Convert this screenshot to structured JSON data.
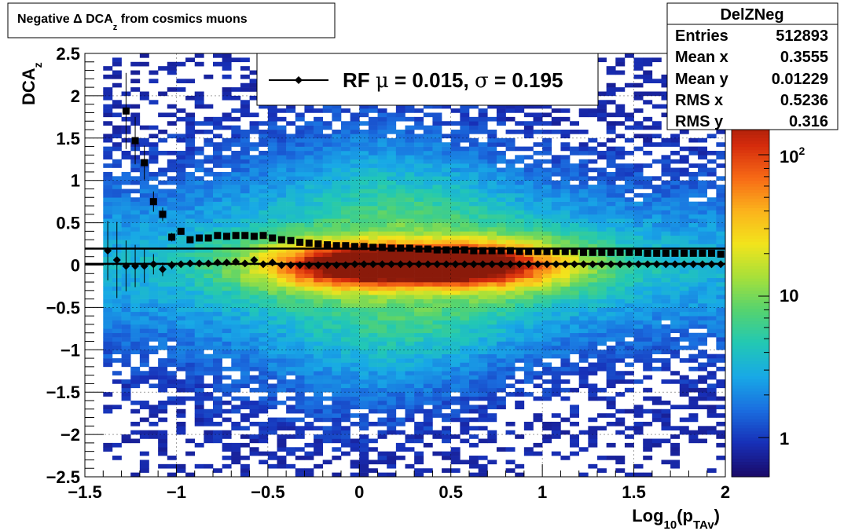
{
  "title": {
    "text_prefix": "Negative ",
    "delta": "Δ",
    "text_dca": " DCA",
    "sub": "z",
    "text_suffix": "  from cosmics muons"
  },
  "stats_box": {
    "name": "DelZNeg",
    "rows": [
      {
        "label": "Entries",
        "value": "512893"
      },
      {
        "label": "Mean x",
        "value": "0.3555"
      },
      {
        "label": "Mean y",
        "value": "0.01229"
      },
      {
        "label": "RMS x",
        "value": "0.5236"
      },
      {
        "label": "RMS y",
        "value": "0.316"
      }
    ]
  },
  "legend": {
    "rf": "RF ",
    "mu": "μ",
    "mid": " =  0.015, ",
    "sigma": "σ",
    "end": " =   0.195"
  },
  "axes": {
    "x_main": "Log",
    "x_sub1": "10",
    "x_open": "(p",
    "x_sub2": "TAv",
    "x_close": ")",
    "y_main": "DCA",
    "y_sub": "z"
  },
  "colorbar": {
    "labels": [
      {
        "text": "1",
        "sup": ""
      },
      {
        "text": "10",
        "sup": ""
      },
      {
        "text": "10",
        "sup": "2"
      }
    ],
    "palette": [
      "#1a0b6b",
      "#1730b8",
      "#1a6fe0",
      "#18a9e6",
      "#22c8b4",
      "#55d36f",
      "#a7e03a",
      "#f2e41c",
      "#fbb31c",
      "#f76a16",
      "#d42a0c",
      "#8a1a0a"
    ]
  },
  "chart_data": {
    "type": "heatmap",
    "x_range": [
      -1.5,
      2
    ],
    "y_range": [
      -2.5,
      2.5
    ],
    "z_scale": "log",
    "x_ticks": [
      "−1.5",
      "−1",
      "−0.5",
      "0",
      "0.5",
      "1",
      "1.5",
      "2"
    ],
    "y_ticks": [
      "−2.5",
      "−2",
      "−1.5",
      "−1",
      "−0.5",
      "0",
      "0.5",
      "1",
      "1.5",
      "2",
      "2.5"
    ],
    "grid": true,
    "legend_position": "top-center",
    "mean_line_y": 0.015,
    "sigma_line_y": 0.195,
    "series": [
      {
        "name": "RF",
        "marker": "diamond",
        "x": [
          -1.375,
          -1.325,
          -1.275,
          -1.225,
          -1.175,
          -1.125,
          -1.075,
          -1.025,
          -0.975,
          -0.925,
          -0.875,
          -0.825,
          -0.775,
          -0.725,
          -0.675,
          -0.625,
          -0.575,
          -0.525,
          -0.475,
          -0.425,
          -0.375,
          -0.325,
          -0.275,
          -0.225,
          -0.175,
          -0.125,
          -0.075,
          -0.025,
          0.025,
          0.075,
          0.125,
          0.175,
          0.225,
          0.275,
          0.325,
          0.375,
          0.425,
          0.475,
          0.525,
          0.575,
          0.625,
          0.675,
          0.725,
          0.775,
          0.825,
          0.875,
          0.925,
          0.975,
          1.025,
          1.075,
          1.125,
          1.175,
          1.225,
          1.275,
          1.325,
          1.375,
          1.425,
          1.475,
          1.525,
          1.575,
          1.625,
          1.675,
          1.725,
          1.775,
          1.825,
          1.875,
          1.925,
          1.975
        ],
        "y": [
          0.17,
          0.06,
          -0.01,
          -0.01,
          -0.01,
          0.01,
          -0.05,
          0.0,
          0.01,
          0.02,
          0.02,
          0.02,
          0.03,
          0.03,
          0.04,
          0.02,
          0.06,
          0.01,
          0.03,
          0.0,
          0.0,
          0.0,
          0.0,
          0.0,
          0.0,
          0.0,
          0.0,
          0.01,
          0.01,
          0.01,
          0.01,
          0.01,
          0.01,
          0.01,
          0.01,
          0.01,
          0.01,
          0.01,
          0.01,
          0.01,
          0.01,
          0.01,
          0.01,
          0.01,
          0.01,
          0.01,
          0.01,
          0.01,
          0.01,
          0.01,
          0.01,
          0.01,
          0.01,
          0.01,
          0.01,
          0.01,
          0.01,
          0.01,
          0.01,
          0.01,
          0.01,
          0.01,
          0.01,
          0.01,
          0.01,
          0.01,
          0.01,
          0.01
        ],
        "err": [
          0.35,
          0.45,
          0.3,
          0.25,
          0.2,
          0.12,
          0.08,
          0.05,
          0.03,
          0.02,
          0.02,
          0.01,
          0.01,
          0.01,
          0.01,
          0.01,
          0.01,
          0.01,
          0.01,
          0.01,
          0.01,
          0.01,
          0.01,
          0.01,
          0.01,
          0.01,
          0.01,
          0.01,
          0.01,
          0.01,
          0.01,
          0.01,
          0.01,
          0.01,
          0.01,
          0.01,
          0.01,
          0.01,
          0.01,
          0.01,
          0.01,
          0.01,
          0.01,
          0.01,
          0.01,
          0.01,
          0.01,
          0.01,
          0.01,
          0.01,
          0.01,
          0.01,
          0.01,
          0.01,
          0.01,
          0.01,
          0.01,
          0.01,
          0.01,
          0.01,
          0.01,
          0.01,
          0.01,
          0.01,
          0.01,
          0.01,
          0.01,
          0.01
        ]
      },
      {
        "name": "",
        "marker": "square",
        "x": [
          -1.275,
          -1.225,
          -1.175,
          -1.125,
          -1.075,
          -1.025,
          -0.975,
          -0.925,
          -0.875,
          -0.825,
          -0.775,
          -0.725,
          -0.675,
          -0.625,
          -0.575,
          -0.525,
          -0.475,
          -0.425,
          -0.375,
          -0.325,
          -0.275,
          -0.225,
          -0.175,
          -0.125,
          -0.075,
          -0.025,
          0.025,
          0.075,
          0.125,
          0.175,
          0.225,
          0.275,
          0.325,
          0.375,
          0.425,
          0.475,
          0.525,
          0.575,
          0.625,
          0.675,
          0.725,
          0.775,
          0.825,
          0.875,
          0.925,
          0.975,
          1.025,
          1.075,
          1.125,
          1.175,
          1.225,
          1.275,
          1.325,
          1.375,
          1.425,
          1.475,
          1.525,
          1.575,
          1.625,
          1.675,
          1.725,
          1.775,
          1.825,
          1.875,
          1.925,
          1.975
        ],
        "y": [
          1.82,
          1.47,
          1.21,
          0.75,
          0.6,
          0.33,
          0.4,
          0.3,
          0.32,
          0.32,
          0.35,
          0.34,
          0.35,
          0.35,
          0.34,
          0.35,
          0.32,
          0.3,
          0.29,
          0.27,
          0.26,
          0.25,
          0.24,
          0.23,
          0.23,
          0.22,
          0.22,
          0.21,
          0.21,
          0.2,
          0.2,
          0.2,
          0.19,
          0.19,
          0.18,
          0.18,
          0.18,
          0.18,
          0.17,
          0.17,
          0.17,
          0.17,
          0.17,
          0.16,
          0.16,
          0.16,
          0.16,
          0.16,
          0.16,
          0.16,
          0.15,
          0.15,
          0.15,
          0.15,
          0.15,
          0.15,
          0.15,
          0.14,
          0.14,
          0.14,
          0.14,
          0.14,
          0.14,
          0.14,
          0.14,
          0.13
        ],
        "err": [
          0.45,
          0.28,
          0.2,
          0.12,
          0.08,
          0.05,
          0.04,
          0.03,
          0.02,
          0.02,
          0.01,
          0.01,
          0.01,
          0.01,
          0.01,
          0.01,
          0.01,
          0.01,
          0.01,
          0.01,
          0.01,
          0.01,
          0.01,
          0.01,
          0.01,
          0.01,
          0.01,
          0.01,
          0.01,
          0.01,
          0.01,
          0.01,
          0.01,
          0.01,
          0.01,
          0.01,
          0.01,
          0.01,
          0.01,
          0.01,
          0.01,
          0.01,
          0.01,
          0.01,
          0.01,
          0.01,
          0.01,
          0.01,
          0.01,
          0.01,
          0.01,
          0.01,
          0.01,
          0.01,
          0.01,
          0.01,
          0.01,
          0.01,
          0.01,
          0.01,
          0.01,
          0.01,
          0.01,
          0.01,
          0.01,
          0.01
        ]
      }
    ]
  }
}
